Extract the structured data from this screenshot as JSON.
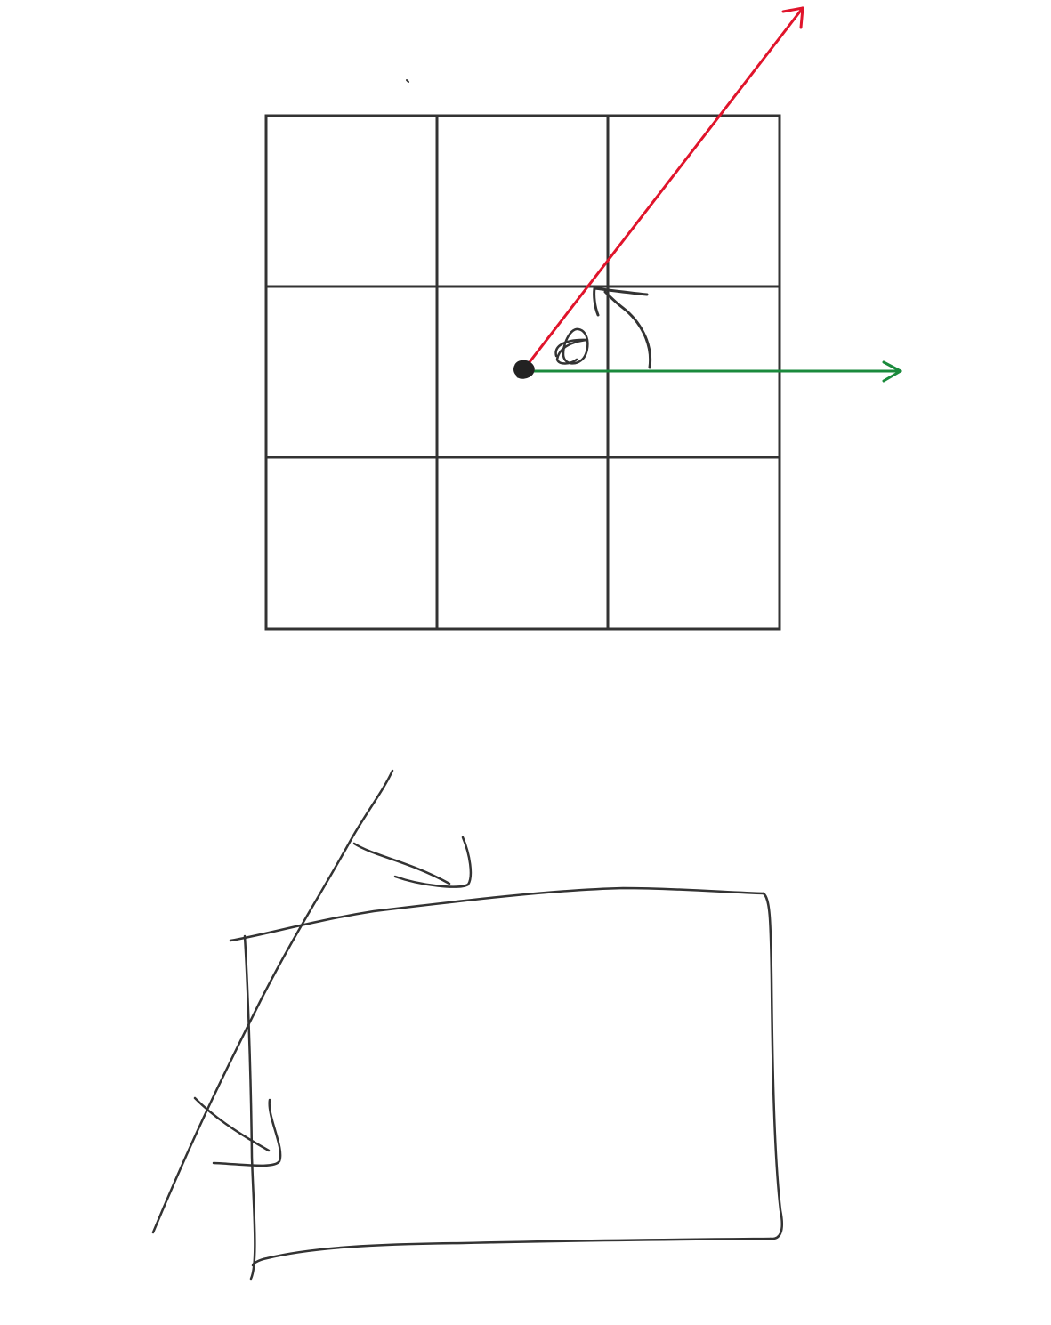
{
  "diagram": {
    "grid": {
      "rows": 3,
      "columns": 3,
      "stroke_color": "#333333"
    },
    "center_point": {
      "color": "#222222"
    },
    "vectors": [
      {
        "id": "red-vector",
        "color": "#e0142b"
      },
      {
        "id": "green-vector",
        "color": "#1a8a3c"
      }
    ],
    "angle": {
      "label": "θ",
      "arc_color": "#333333"
    },
    "sketch": {
      "stroke_color": "#333333"
    }
  }
}
